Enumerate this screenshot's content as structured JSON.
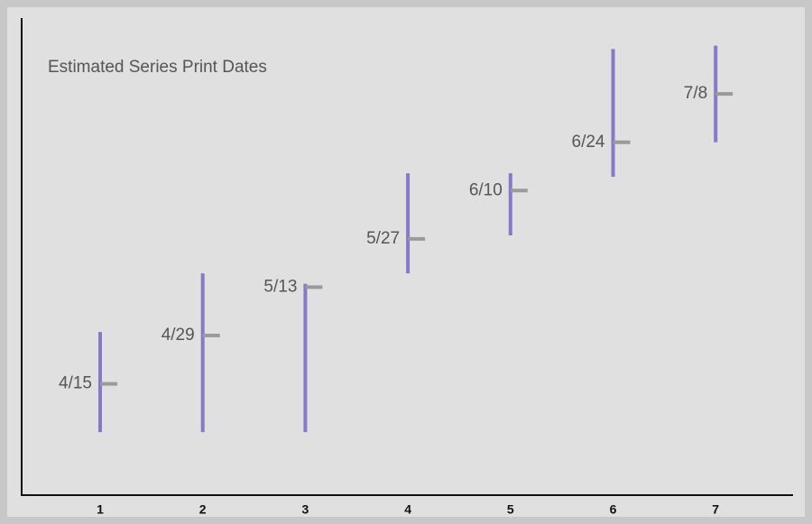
{
  "chart_data": {
    "type": "range",
    "title": "Estimated Series Print Dates",
    "categories": [
      "1",
      "2",
      "3",
      "4",
      "5",
      "6",
      "7"
    ],
    "series": [
      {
        "color": "#8878c8",
        "tick_color": "#9a9a9a",
        "high": [
          "4/30",
          "5/17",
          "5/14",
          "6/15",
          "6/15",
          "7/21",
          "7/22"
        ],
        "low": [
          "4/1",
          "4/1",
          "4/1",
          "5/17",
          "5/28",
          "6/14",
          "6/24"
        ],
        "values": [
          "4/15",
          "4/29",
          "5/13",
          "5/27",
          "6/10",
          "6/24",
          "7/8"
        ]
      }
    ],
    "ylim": [
      "3/14",
      "7/30"
    ]
  }
}
